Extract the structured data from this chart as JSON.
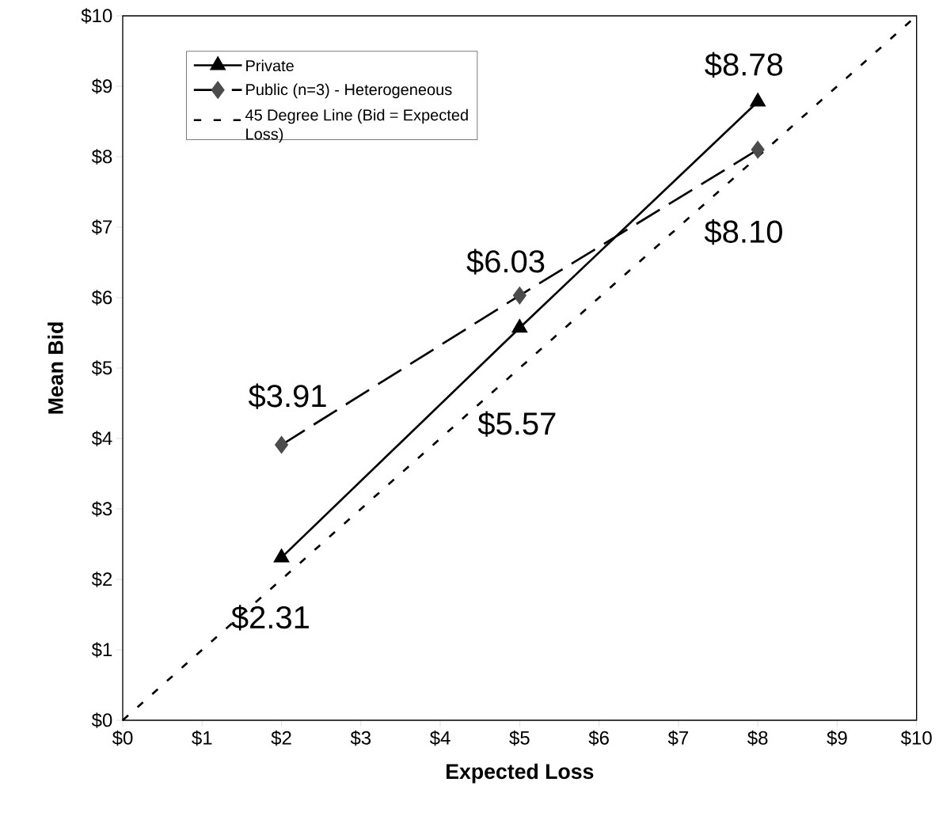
{
  "chart_data": {
    "type": "line",
    "xlabel": "Expected Loss",
    "ylabel": "Mean Bid",
    "xlim": [
      0,
      10
    ],
    "ylim": [
      0,
      10
    ],
    "xticks": [
      {
        "value": 0,
        "label": "$0"
      },
      {
        "value": 1,
        "label": "$1"
      },
      {
        "value": 2,
        "label": "$2"
      },
      {
        "value": 3,
        "label": "$3"
      },
      {
        "value": 4,
        "label": "$4"
      },
      {
        "value": 5,
        "label": "$5"
      },
      {
        "value": 6,
        "label": "$6"
      },
      {
        "value": 7,
        "label": "$7"
      },
      {
        "value": 8,
        "label": "$8"
      },
      {
        "value": 9,
        "label": "$9"
      },
      {
        "value": 10,
        "label": "$10"
      }
    ],
    "yticks": [
      {
        "value": 0,
        "label": "$0"
      },
      {
        "value": 1,
        "label": "$1"
      },
      {
        "value": 2,
        "label": "$2"
      },
      {
        "value": 3,
        "label": "$3"
      },
      {
        "value": 4,
        "label": "$4"
      },
      {
        "value": 5,
        "label": "$5"
      },
      {
        "value": 6,
        "label": "$6"
      },
      {
        "value": 7,
        "label": "$7"
      },
      {
        "value": 8,
        "label": "$8"
      },
      {
        "value": 9,
        "label": "$9"
      },
      {
        "value": 10,
        "label": "$10"
      }
    ],
    "legend": "top left",
    "series": [
      {
        "name": "Private",
        "color": "#000000",
        "marker": "triangle",
        "line_style": "solid",
        "x": [
          2,
          5,
          8
        ],
        "values": [
          2.31,
          5.57,
          8.78
        ],
        "value_labels": [
          "$2.31",
          "$5.57",
          "$8.78"
        ]
      },
      {
        "name": "Public (n=3) - Heterogeneous",
        "color": "#000000",
        "marker": "diamond",
        "line_style": "dashed",
        "x": [
          2,
          5,
          8
        ],
        "values": [
          3.91,
          6.03,
          8.1
        ],
        "value_labels": [
          "$3.91",
          "$6.03",
          "$8.10"
        ]
      },
      {
        "name": "45 Degree Line (Bid = Expected Loss)",
        "color": "#000000",
        "marker": "none",
        "line_style": "dotted",
        "x": [
          0,
          10
        ],
        "values": [
          0,
          10
        ]
      }
    ]
  }
}
